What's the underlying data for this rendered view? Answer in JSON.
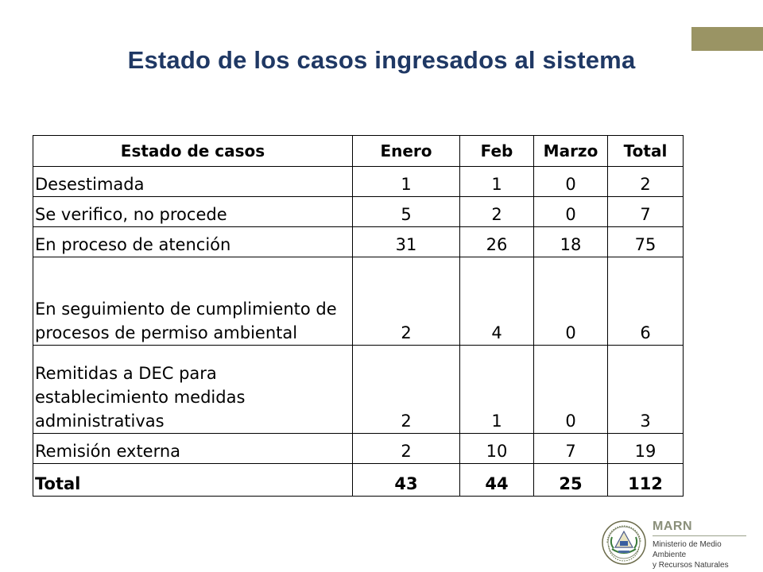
{
  "slide": {
    "title": "Estado de los casos ingresados al sistema",
    "accent_color": "#9a9464",
    "title_color": "#1f3864"
  },
  "table": {
    "headers": [
      "Estado de casos",
      "Enero",
      "Feb",
      "Marzo",
      "Total"
    ],
    "rows": [
      {
        "state": "Desestimada",
        "enero": "1",
        "feb": "1",
        "marzo": "0",
        "total": "2"
      },
      {
        "state": "Se verifico, no procede",
        "enero": "5",
        "feb": "2",
        "marzo": "0",
        "total": "7"
      },
      {
        "state": "En proceso de atención",
        "enero": "31",
        "feb": "26",
        "marzo": "18",
        "total": "75"
      },
      {
        "state": "En seguimiento de cumplimiento de procesos de permiso ambiental",
        "enero": "2",
        "feb": "4",
        "marzo": "0",
        "total": "6"
      },
      {
        "state": "Remitidas a DEC para establecimiento medidas administrativas",
        "enero": "2",
        "feb": "1",
        "marzo": "0",
        "total": "3"
      },
      {
        "state": "Remisión externa",
        "enero": "2",
        "feb": "10",
        "marzo": "7",
        "total": "19"
      }
    ],
    "total_row": {
      "state": "Total",
      "enero": "43",
      "feb": "44",
      "marzo": "25",
      "total": "112"
    }
  },
  "footer": {
    "brand": "MARN",
    "subtitle_line1": "Ministerio de Medio Ambiente",
    "subtitle_line2": "y Recursos Naturales",
    "seal_icon": "el-salvador-coat-of-arms-icon"
  }
}
